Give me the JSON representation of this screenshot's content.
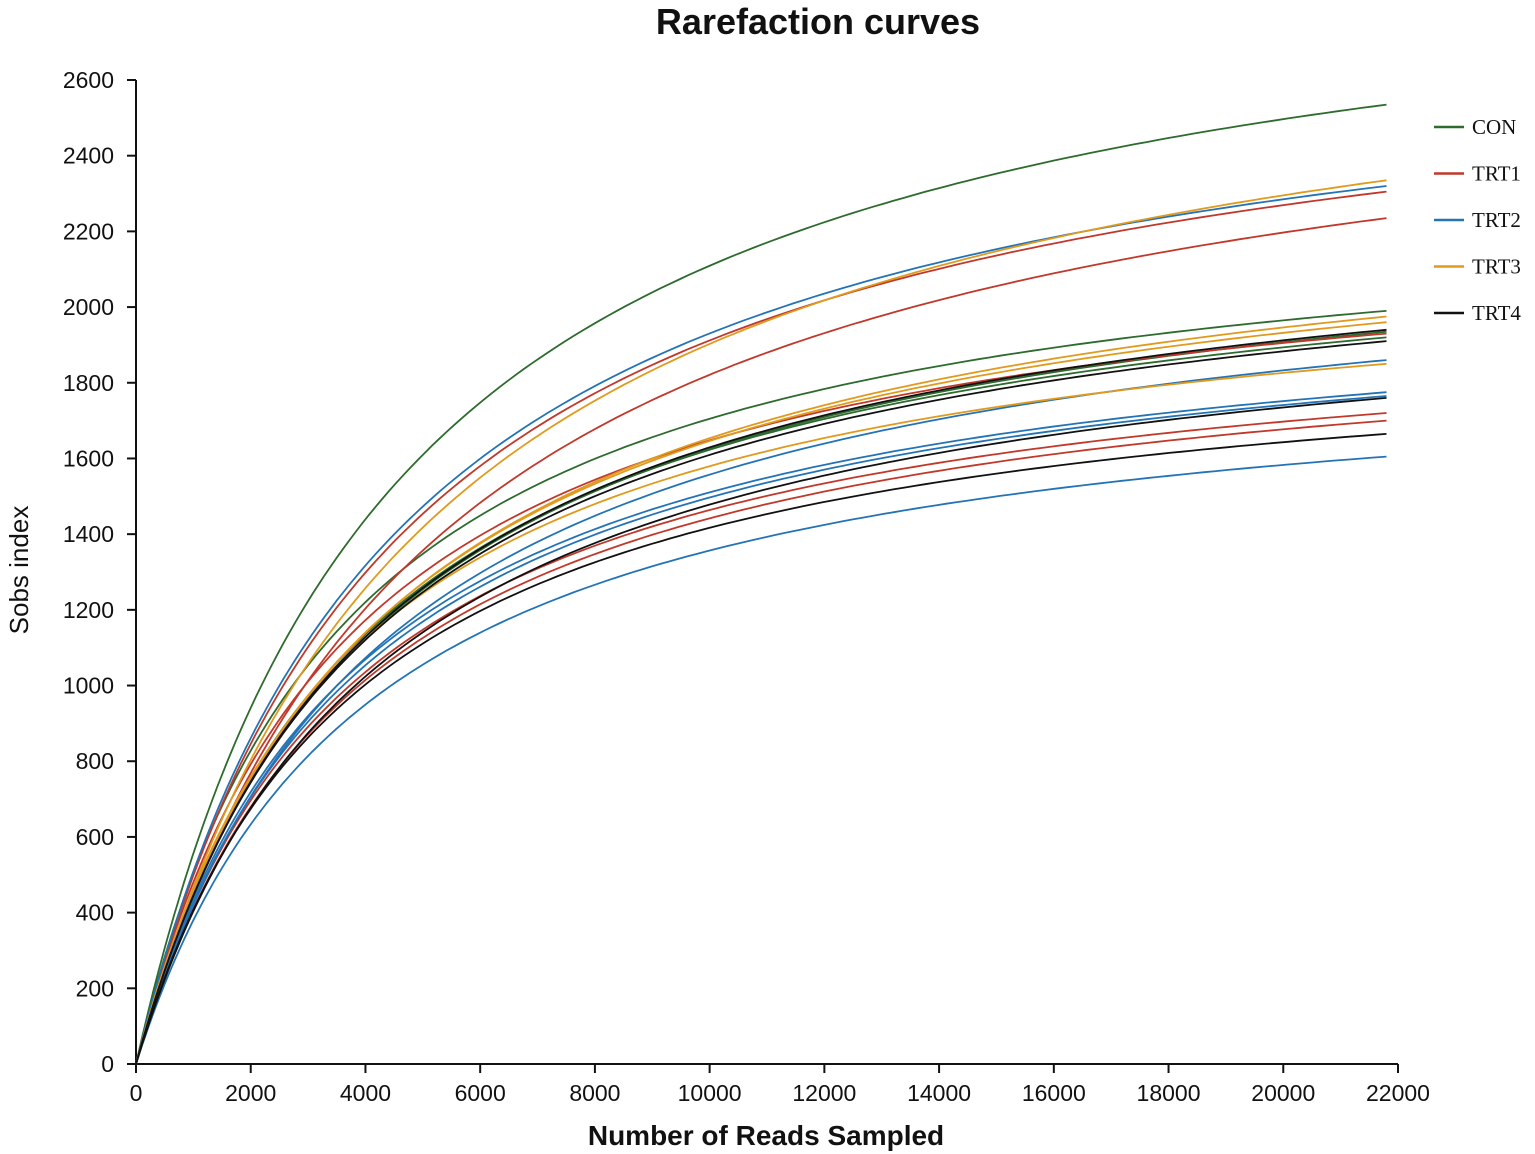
{
  "chart_data": {
    "type": "line",
    "title": "Rarefaction curves",
    "xlabel": "Number of Reads Sampled",
    "ylabel": "Sobs index",
    "xlim": [
      0,
      22000
    ],
    "ylim": [
      0,
      2600
    ],
    "x_ticks": [
      0,
      2000,
      4000,
      6000,
      8000,
      10000,
      12000,
      14000,
      16000,
      18000,
      20000,
      22000
    ],
    "y_ticks": [
      0,
      200,
      400,
      600,
      800,
      1000,
      1200,
      1400,
      1600,
      1800,
      2000,
      2200,
      2400,
      2600
    ],
    "x_max_sampled": 21800,
    "grid": false,
    "legend_position": "top-right",
    "groups": [
      {
        "name": "CON",
        "color": "#2e6b2e"
      },
      {
        "name": "TRT1",
        "color": "#c0392b"
      },
      {
        "name": "TRT2",
        "color": "#2474b5"
      },
      {
        "name": "TRT3",
        "color": "#e09a1e"
      },
      {
        "name": "TRT4",
        "color": "#111111"
      }
    ],
    "series": [
      {
        "group": "CON",
        "final_value": 2535,
        "half_saturation": 4500
      },
      {
        "group": "CON",
        "final_value": 1990,
        "half_saturation": 3600
      },
      {
        "group": "CON",
        "final_value": 1935,
        "half_saturation": 4200
      },
      {
        "group": "CON",
        "final_value": 1920,
        "half_saturation": 4000
      },
      {
        "group": "TRT1",
        "final_value": 2305,
        "half_saturation": 4600
      },
      {
        "group": "TRT1",
        "final_value": 2235,
        "half_saturation": 5200
      },
      {
        "group": "TRT1",
        "final_value": 1930,
        "half_saturation": 3700
      },
      {
        "group": "TRT1",
        "final_value": 1720,
        "half_saturation": 3800
      },
      {
        "group": "TRT1",
        "final_value": 1700,
        "half_saturation": 3900
      },
      {
        "group": "TRT2",
        "final_value": 2320,
        "half_saturation": 4500
      },
      {
        "group": "TRT2",
        "final_value": 1860,
        "half_saturation": 4300
      },
      {
        "group": "TRT2",
        "final_value": 1775,
        "half_saturation": 3800
      },
      {
        "group": "TRT2",
        "final_value": 1765,
        "half_saturation": 3900
      },
      {
        "group": "TRT2",
        "final_value": 1605,
        "half_saturation": 4000
      },
      {
        "group": "TRT3",
        "final_value": 2335,
        "half_saturation": 5200
      },
      {
        "group": "TRT3",
        "final_value": 1975,
        "half_saturation": 4300
      },
      {
        "group": "TRT3",
        "final_value": 1960,
        "half_saturation": 4200
      },
      {
        "group": "TRT3",
        "final_value": 1850,
        "half_saturation": 3700
      },
      {
        "group": "TRT4",
        "final_value": 1940,
        "half_saturation": 4200
      },
      {
        "group": "TRT4",
        "final_value": 1910,
        "half_saturation": 4100
      },
      {
        "group": "TRT4",
        "final_value": 1760,
        "half_saturation": 4200
      },
      {
        "group": "TRT4",
        "final_value": 1665,
        "half_saturation": 3800
      }
    ]
  }
}
